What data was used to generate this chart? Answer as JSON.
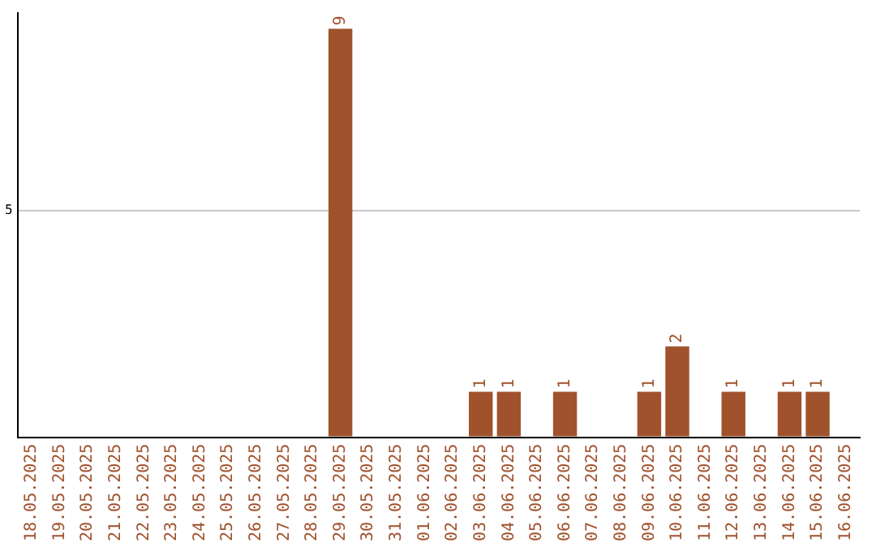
{
  "chart_data": {
    "type": "bar",
    "categories": [
      "18.05.2025",
      "19.05.2025",
      "20.05.2025",
      "21.05.2025",
      "22.05.2025",
      "23.05.2025",
      "24.05.2025",
      "25.05.2025",
      "26.05.2025",
      "27.05.2025",
      "28.05.2025",
      "29.05.2025",
      "30.05.2025",
      "31.05.2025",
      "01.06.2025",
      "02.06.2025",
      "03.06.2025",
      "04.06.2025",
      "05.06.2025",
      "06.06.2025",
      "07.06.2025",
      "08.06.2025",
      "09.06.2025",
      "10.06.2025",
      "11.06.2025",
      "12.06.2025",
      "13.06.2025",
      "14.06.2025",
      "15.06.2025",
      "16.06.2025"
    ],
    "values": [
      0,
      0,
      0,
      0,
      0,
      0,
      0,
      0,
      0,
      0,
      0,
      9,
      0,
      0,
      0,
      0,
      1,
      1,
      0,
      1,
      0,
      0,
      1,
      2,
      0,
      1,
      0,
      1,
      1,
      0
    ],
    "value_labels": [
      null,
      null,
      null,
      null,
      null,
      null,
      null,
      null,
      null,
      null,
      null,
      "9",
      null,
      null,
      null,
      null,
      "1",
      "1",
      null,
      "1",
      null,
      null,
      "1",
      "2",
      null,
      "1",
      null,
      "1",
      "1",
      null
    ],
    "color": "#a0522d",
    "ylim": [
      0,
      9.35
    ],
    "yticks": [
      {
        "value": 0,
        "label": null
      },
      5
    ],
    "grid": "y",
    "legend": false
  }
}
